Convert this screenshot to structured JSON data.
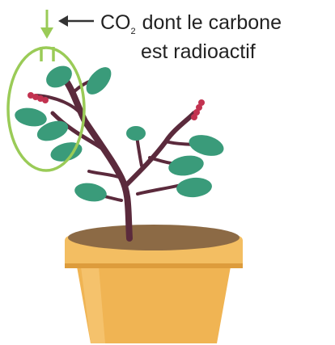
{
  "annotation": {
    "formula": "CO",
    "subscript": "2",
    "line1_rest": "dont le carbone",
    "line2": "est radioactif"
  }
}
